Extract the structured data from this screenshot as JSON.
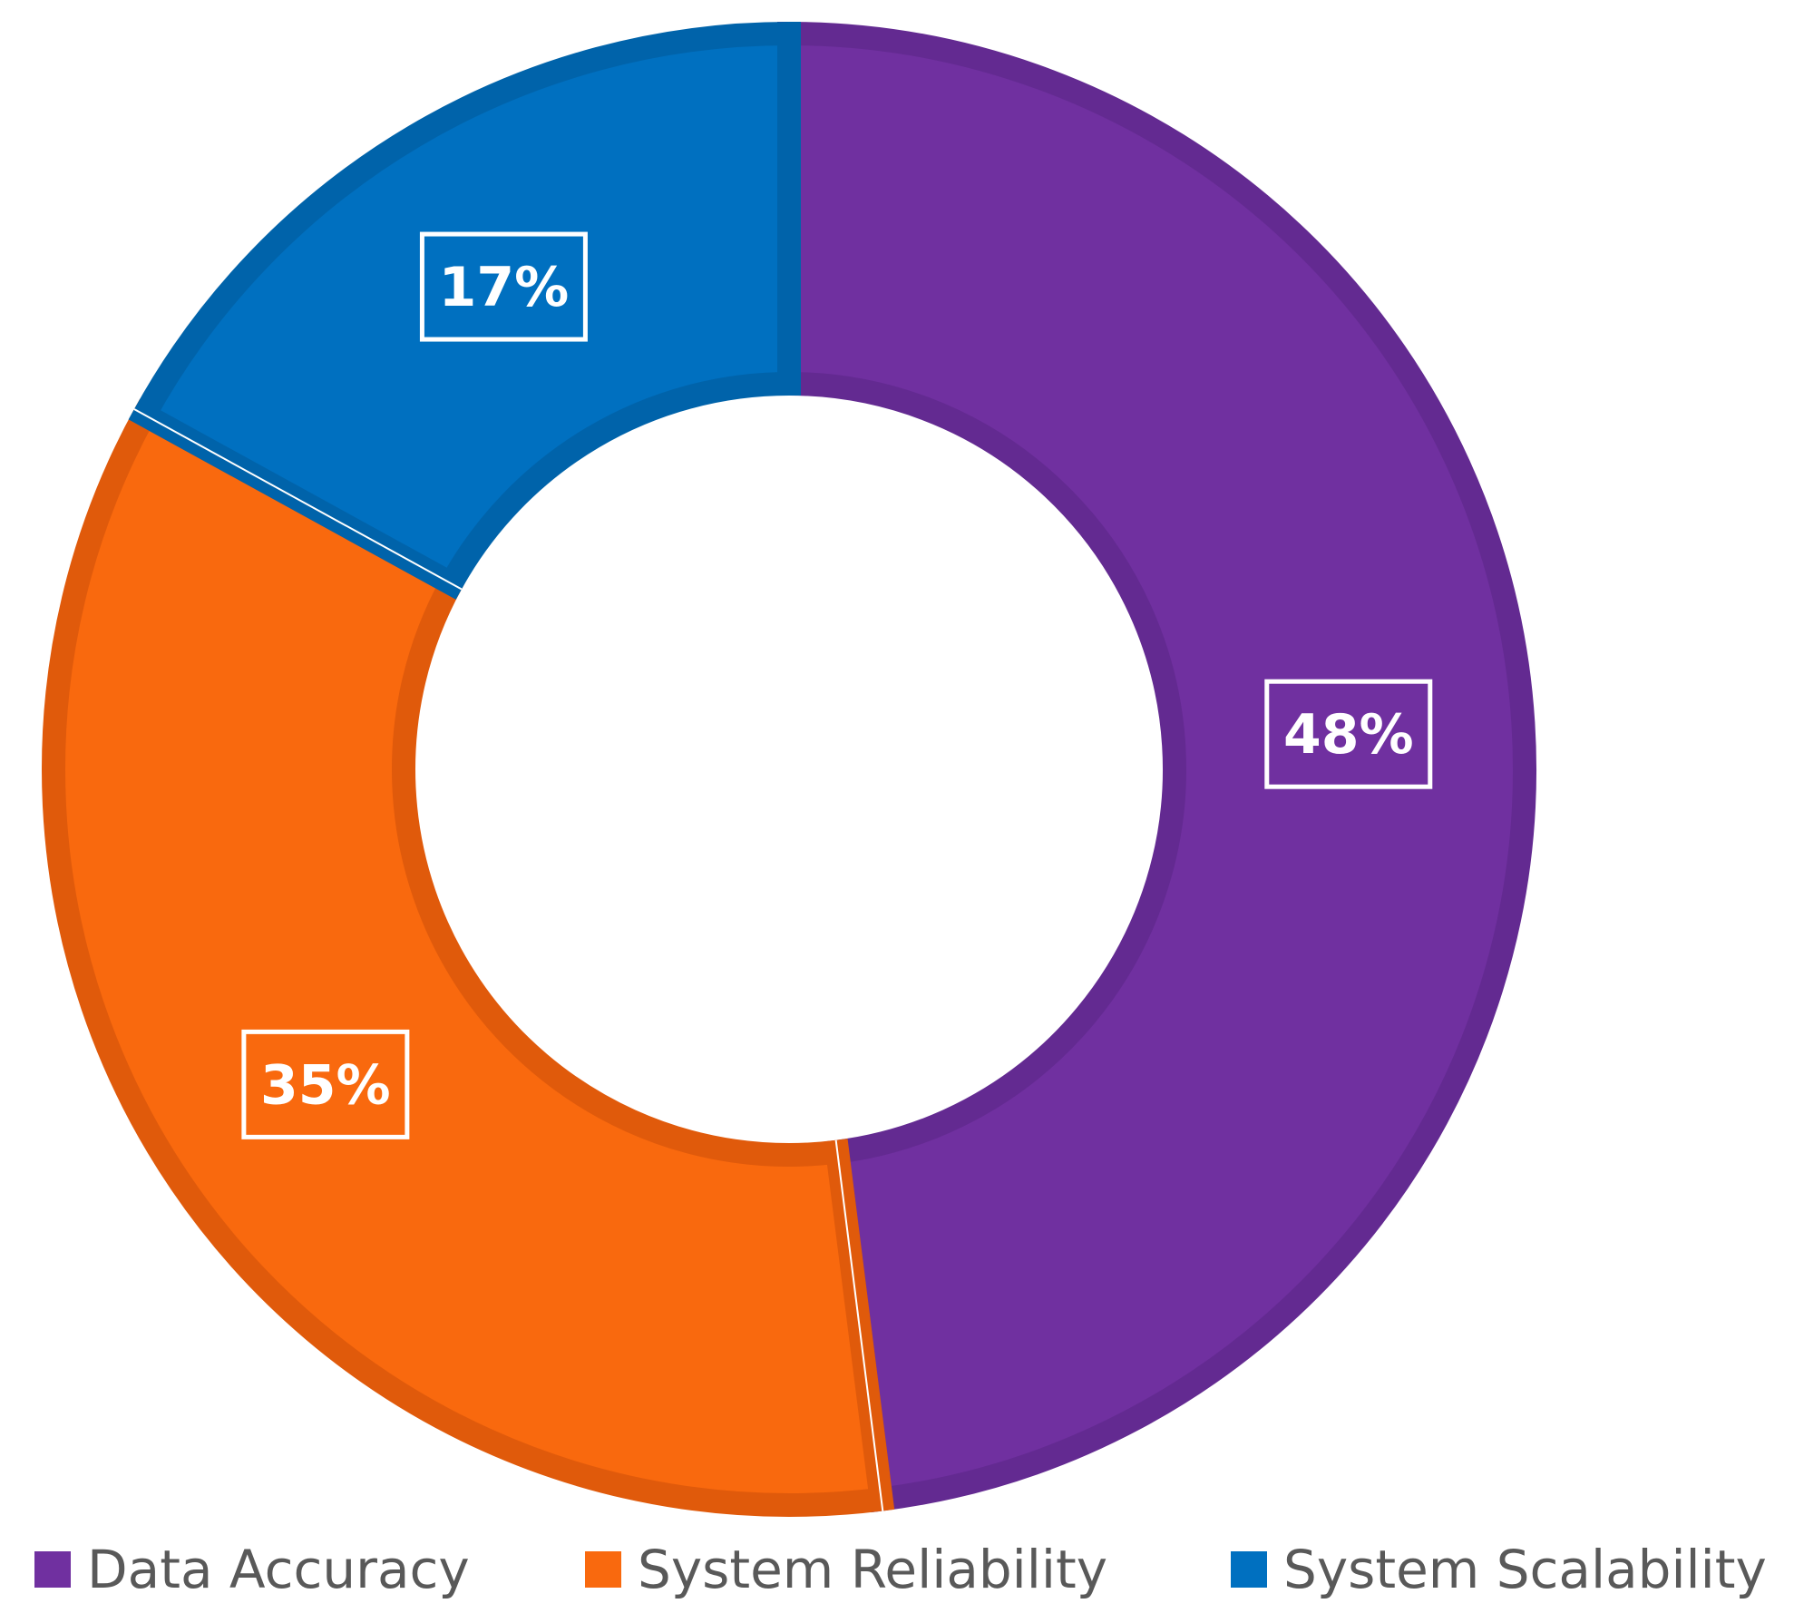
{
  "chart_data": {
    "type": "pie",
    "donut": true,
    "title": "",
    "categories": [
      "Data Accuracy",
      "System Reliability",
      "System Scalability"
    ],
    "values": [
      48,
      35,
      17
    ],
    "value_labels": [
      "48%",
      "35%",
      "17%"
    ],
    "colors": [
      "#7030A0",
      "#F9690E",
      "#0070C0"
    ],
    "border_colors": [
      "#632A91",
      "#E05A0B",
      "#0063AA"
    ],
    "start_angle_deg": 0,
    "direction": "clockwise",
    "legend": {
      "position": "bottom",
      "entries": [
        "Data Accuracy",
        "System Reliability",
        "System Scalability"
      ]
    }
  }
}
